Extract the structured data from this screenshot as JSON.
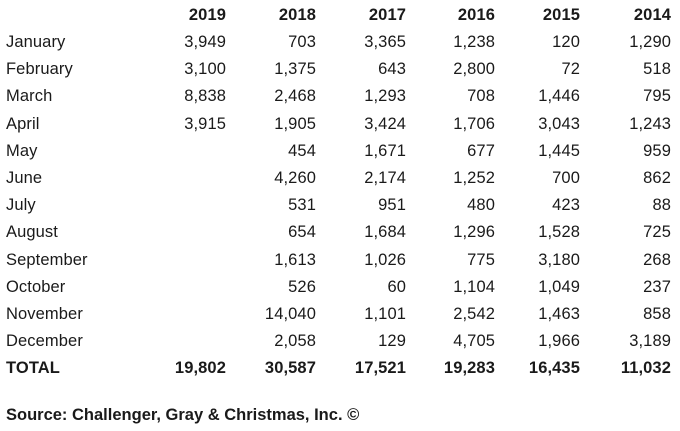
{
  "table": {
    "headers": [
      "2019",
      "2018",
      "2017",
      "2016",
      "2015",
      "2014"
    ],
    "rows": [
      {
        "label": "January",
        "values": [
          "3,949",
          "703",
          "3,365",
          "1,238",
          "120",
          "1,290"
        ]
      },
      {
        "label": "February",
        "values": [
          "3,100",
          "1,375",
          "643",
          "2,800",
          "72",
          "518"
        ]
      },
      {
        "label": "March",
        "values": [
          "8,838",
          "2,468",
          "1,293",
          "708",
          "1,446",
          "795"
        ]
      },
      {
        "label": "April",
        "values": [
          "3,915",
          "1,905",
          "3,424",
          "1,706",
          "3,043",
          "1,243"
        ]
      },
      {
        "label": "May",
        "values": [
          "",
          "454",
          "1,671",
          "677",
          "1,445",
          "959"
        ]
      },
      {
        "label": "June",
        "values": [
          "",
          "4,260",
          "2,174",
          "1,252",
          "700",
          "862"
        ]
      },
      {
        "label": "July",
        "values": [
          "",
          "531",
          "951",
          "480",
          "423",
          "88"
        ]
      },
      {
        "label": "August",
        "values": [
          "",
          "654",
          "1,684",
          "1,296",
          "1,528",
          "725"
        ]
      },
      {
        "label": "September",
        "values": [
          "",
          "1,613",
          "1,026",
          "775",
          "3,180",
          "268"
        ]
      },
      {
        "label": "October",
        "values": [
          "",
          "526",
          "60",
          "1,104",
          "1,049",
          "237"
        ]
      },
      {
        "label": "November",
        "values": [
          "",
          "14,040",
          "1,101",
          "2,542",
          "1,463",
          "858"
        ]
      },
      {
        "label": "December",
        "values": [
          "",
          "2,058",
          "129",
          "4,705",
          "1,966",
          "3,189"
        ]
      }
    ],
    "total": {
      "label": "TOTAL",
      "values": [
        "19,802",
        "30,587",
        "17,521",
        "19,283",
        "16,435",
        "11,032"
      ]
    }
  },
  "source": "Source: Challenger, Gray & Christmas, Inc. ©"
}
